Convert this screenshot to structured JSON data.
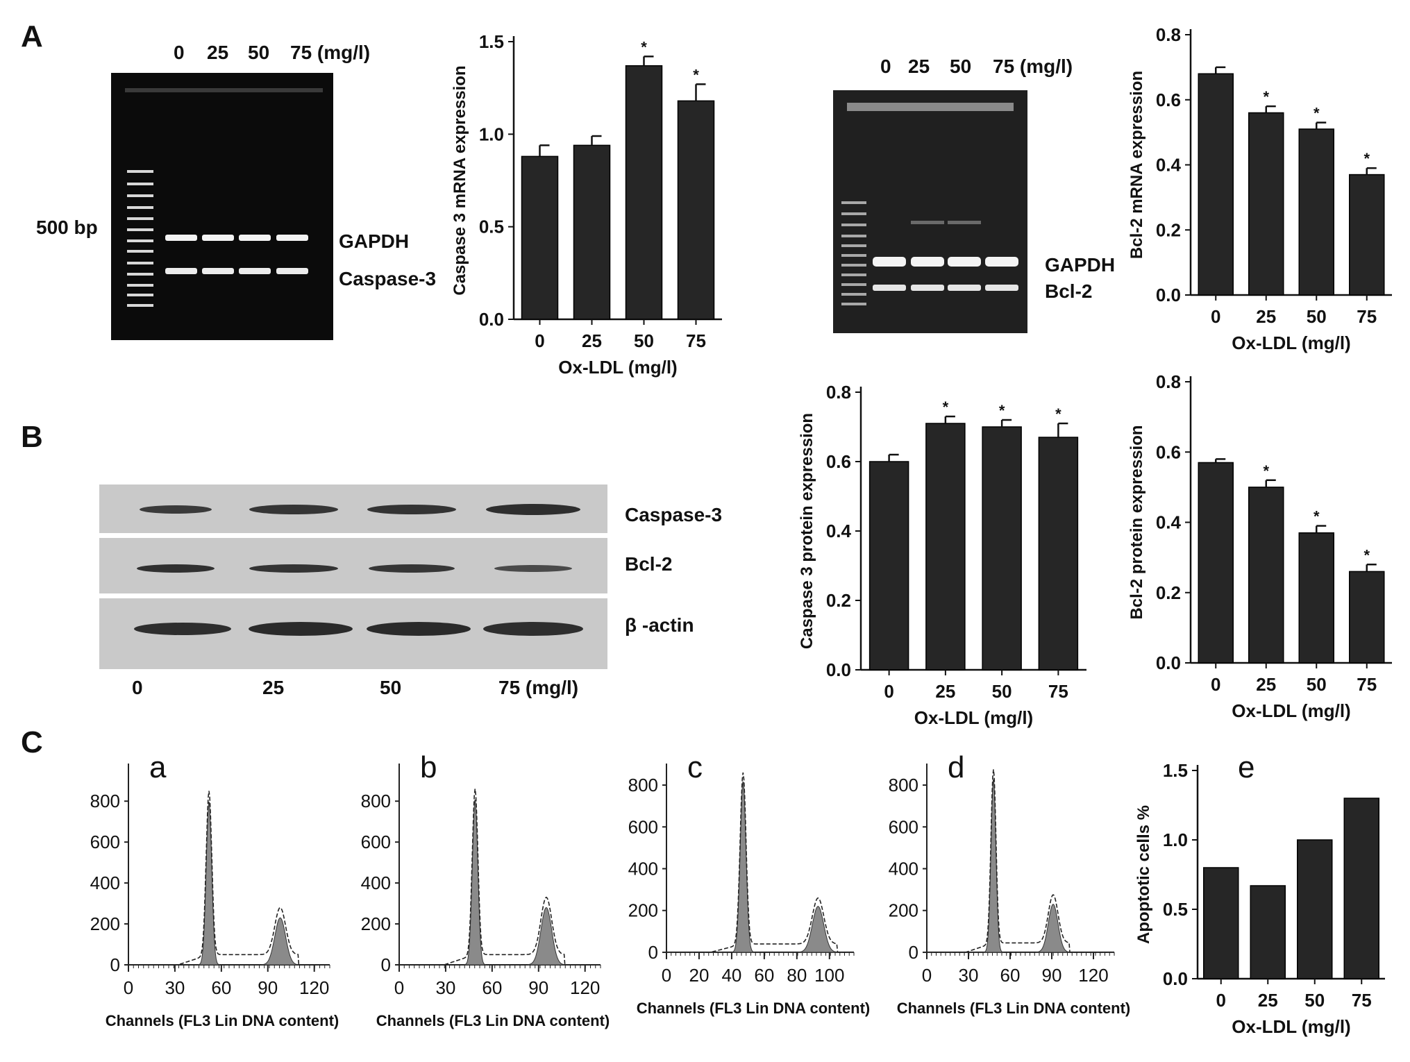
{
  "panels": {
    "A": "A",
    "B": "B",
    "C": "C"
  },
  "gel1": {
    "lanes": [
      "0",
      "25",
      "50",
      "75 (mg/l)"
    ],
    "marker": "500 bp",
    "band_top": "GAPDH",
    "band_bottom": "Caspase-3"
  },
  "gel2": {
    "lanes": [
      "0",
      "25",
      "50",
      "75 (mg/l)"
    ],
    "band_top": "GAPDH",
    "band_bottom": "Bcl-2"
  },
  "blot": {
    "rows": [
      "Caspase-3",
      "Bcl-2",
      "β -actin"
    ],
    "lanes": [
      "0",
      "25",
      "50",
      "75 (mg/l)"
    ]
  },
  "chart_data": [
    {
      "id": "caspase3-mrna",
      "type": "bar",
      "categories": [
        "0",
        "25",
        "50",
        "75"
      ],
      "values": [
        0.88,
        0.94,
        1.37,
        1.18
      ],
      "errors": [
        0.06,
        0.05,
        0.05,
        0.09
      ],
      "significant": [
        false,
        false,
        true,
        true
      ],
      "xlabel": "Ox-LDL (mg/l)",
      "ylabel": "Caspase 3  mRNA expression",
      "ylim": [
        0,
        1.5
      ],
      "yticks": [
        "0.0",
        "0.5",
        "1.0",
        "1.5"
      ]
    },
    {
      "id": "bcl2-mrna",
      "type": "bar",
      "categories": [
        "0",
        "25",
        "50",
        "75"
      ],
      "values": [
        0.68,
        0.56,
        0.51,
        0.37
      ],
      "errors": [
        0.02,
        0.02,
        0.02,
        0.02
      ],
      "significant": [
        false,
        true,
        true,
        true
      ],
      "xlabel": "Ox-LDL (mg/l)",
      "ylabel": "Bcl-2 mRNA expression",
      "ylim": [
        0,
        0.8
      ],
      "yticks": [
        "0.0",
        "0.2",
        "0.4",
        "0.6",
        "0.8"
      ]
    },
    {
      "id": "caspase3-protein",
      "type": "bar",
      "categories": [
        "0",
        "25",
        "50",
        "75"
      ],
      "values": [
        0.6,
        0.71,
        0.7,
        0.67
      ],
      "errors": [
        0.02,
        0.02,
        0.02,
        0.04
      ],
      "significant": [
        false,
        true,
        true,
        true
      ],
      "xlabel": "Ox-LDL (mg/l)",
      "ylabel": "Caspase 3  protein expression",
      "ylim": [
        0,
        0.8
      ],
      "yticks": [
        "0.0",
        "0.2",
        "0.4",
        "0.6",
        "0.8"
      ]
    },
    {
      "id": "bcl2-protein",
      "type": "bar",
      "categories": [
        "0",
        "25",
        "50",
        "75"
      ],
      "values": [
        0.57,
        0.5,
        0.37,
        0.26
      ],
      "errors": [
        0.01,
        0.02,
        0.02,
        0.02
      ],
      "significant": [
        false,
        true,
        true,
        true
      ],
      "xlabel": "Ox-LDL (mg/l)",
      "ylabel": "Bcl-2  protein expression",
      "ylim": [
        0,
        0.8
      ],
      "yticks": [
        "0.0",
        "0.2",
        "0.4",
        "0.6",
        "0.8"
      ]
    },
    {
      "id": "hist-a",
      "type": "area",
      "letter": "a",
      "xlabel": "Channels (FL3 Lin DNA content)",
      "xticks": [
        0,
        30,
        60,
        90,
        120
      ],
      "xlim": [
        0,
        130
      ],
      "yticks": [
        0,
        200,
        400,
        600,
        800
      ],
      "ylim": [
        0,
        950
      ],
      "peaks": [
        {
          "x": 52,
          "height": 800
        },
        {
          "x": 98,
          "height": 230
        }
      ],
      "baseline": 50
    },
    {
      "id": "hist-b",
      "type": "area",
      "letter": "b",
      "xlabel": "Channels (FL3 Lin DNA content)",
      "xticks": [
        0,
        30,
        60,
        90,
        120
      ],
      "xlim": [
        0,
        130
      ],
      "yticks": [
        0,
        200,
        400,
        600,
        800
      ],
      "ylim": [
        0,
        950
      ],
      "peaks": [
        {
          "x": 49,
          "height": 810
        },
        {
          "x": 95,
          "height": 280
        }
      ],
      "baseline": 50
    },
    {
      "id": "hist-c",
      "type": "area",
      "letter": "c",
      "xlabel": "Channels (FL3 Lin DNA content)",
      "xticks": [
        0,
        20,
        40,
        60,
        80,
        100
      ],
      "xlim": [
        0,
        115
      ],
      "yticks": [
        0,
        200,
        400,
        600,
        800
      ],
      "ylim": [
        -60,
        870
      ],
      "peaks": [
        {
          "x": 47,
          "height": 820
        },
        {
          "x": 93,
          "height": 220
        }
      ],
      "baseline": 40
    },
    {
      "id": "hist-d",
      "type": "area",
      "letter": "d",
      "xlabel": "Channels (FL3 Lin DNA content)",
      "xticks": [
        0,
        30,
        60,
        90,
        120
      ],
      "xlim": [
        0,
        135
      ],
      "yticks": [
        0,
        200,
        400,
        600,
        800
      ],
      "ylim": [
        -60,
        870
      ],
      "peaks": [
        {
          "x": 48,
          "height": 830
        },
        {
          "x": 91,
          "height": 230
        }
      ],
      "baseline": 45
    },
    {
      "id": "apoptotic-cells",
      "type": "bar",
      "letter": "e",
      "categories": [
        "0",
        "25",
        "50",
        "75"
      ],
      "values": [
        0.8,
        0.67,
        1.0,
        1.3
      ],
      "xlabel": "Ox-LDL (mg/l)",
      "ylabel": "Apoptotic cells %",
      "ylim": [
        0,
        1.5
      ],
      "yticks": [
        "0.0",
        "0.5",
        "1.0",
        "1.5"
      ]
    }
  ]
}
